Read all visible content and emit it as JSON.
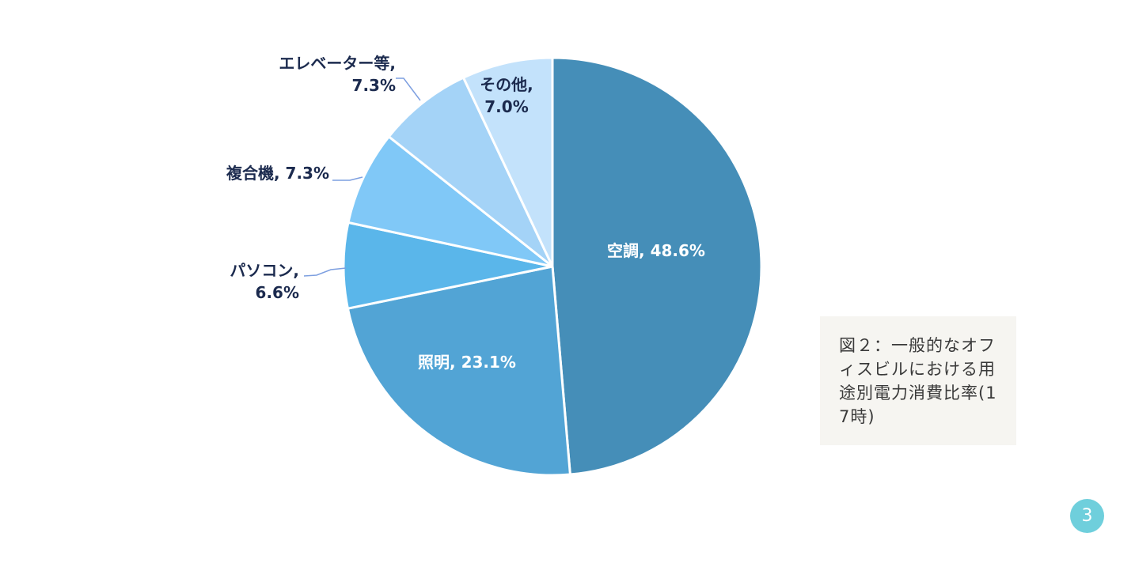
{
  "chart_data": {
    "type": "pie",
    "categories": [
      "空調",
      "照明",
      "パソコン",
      "複合機",
      "エレベーター等",
      "その他"
    ],
    "values": [
      48.6,
      23.1,
      6.6,
      7.3,
      7.3,
      7.0
    ],
    "labels": [
      [
        "空調, 48.6%"
      ],
      [
        "照明, 23.1%"
      ],
      [
        "パソコン,",
        "6.6%"
      ],
      [
        "複合機, 7.3%"
      ],
      [
        "エレベーター等,",
        "7.3%"
      ],
      [
        "その他,",
        "7.0%"
      ]
    ],
    "colors": [
      "#458eb8",
      "#52a4d5",
      "#5ab6ea",
      "#80c8f7",
      "#a4d3f7",
      "#c3e2fb"
    ],
    "start_angle_deg": 0,
    "direction": "clockwise",
    "label_positions": [
      "inside",
      "inside",
      "outside-left",
      "outside-left",
      "outside-top",
      "inside"
    ]
  },
  "caption": {
    "text": "図２：一般的なオフィスビルにおける用途別電力消費比率(17時)"
  },
  "page_number": "3"
}
